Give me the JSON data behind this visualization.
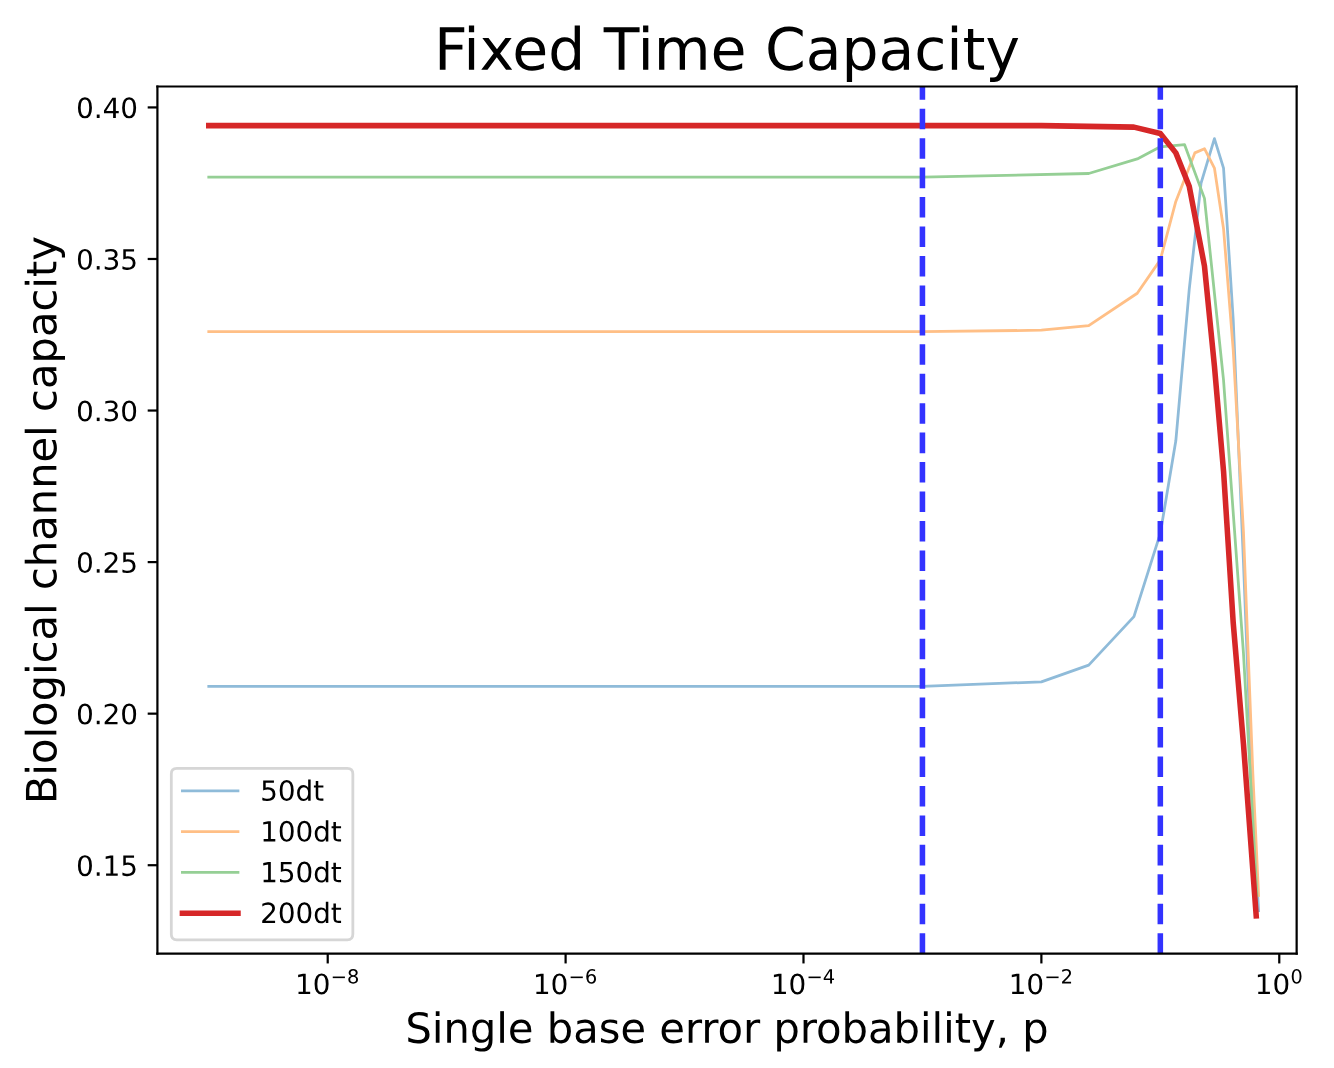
{
  "chart_data": {
    "type": "line",
    "title": "Fixed Time Capacity",
    "xlabel": "Single base error probability, p",
    "ylabel": "Biological channel capacity",
    "log": "x",
    "xlim": [
      3.7e-10,
      1.4
    ],
    "ylim": [
      0.1208,
      0.4069
    ],
    "xticks": [
      {
        "value": 1e-08,
        "label": "10$^{−8}$"
      },
      {
        "value": 1e-06,
        "label": "10$^{−6}$"
      },
      {
        "value": 0.0001,
        "label": "10$^{−4}$"
      },
      {
        "value": 0.01,
        "label": "10$^{−2}$"
      },
      {
        "value": 1,
        "label": "10$^{0}$"
      }
    ],
    "yticks": [
      {
        "value": 0.15,
        "label": "0.15"
      },
      {
        "value": 0.2,
        "label": "0.20"
      },
      {
        "value": 0.25,
        "label": "0.25"
      },
      {
        "value": 0.3,
        "label": "0.30"
      },
      {
        "value": 0.35,
        "label": "0.35"
      },
      {
        "value": 0.4,
        "label": "0.40"
      }
    ],
    "grid": false,
    "legend": "bottom left",
    "marker": "none",
    "line_style": "solid",
    "series": [
      {
        "name": "50dt",
        "color": "#8fbbd9",
        "x": [
          1e-09,
          0.001,
          0.01,
          0.025,
          0.06,
          0.1,
          0.135,
          0.175,
          0.22,
          0.285,
          0.34,
          0.41,
          0.5,
          0.6,
          0.67
        ],
        "values": [
          0.209,
          0.209,
          0.2105,
          0.216,
          0.232,
          0.2595,
          0.29,
          0.34,
          0.375,
          0.3897,
          0.38,
          0.33,
          0.25,
          0.17,
          0.135
        ]
      },
      {
        "name": "100dt",
        "color": "#ffbf86",
        "x": [
          1e-09,
          0.001,
          0.01,
          0.025,
          0.064,
          0.1,
          0.135,
          0.195,
          0.235,
          0.285,
          0.34,
          0.41,
          0.5,
          0.6,
          0.67
        ],
        "values": [
          0.326,
          0.326,
          0.3265,
          0.328,
          0.3387,
          0.3497,
          0.369,
          0.385,
          0.3864,
          0.38,
          0.36,
          0.32,
          0.26,
          0.18,
          0.14
        ]
      },
      {
        "name": "150dt",
        "color": "#95cf95",
        "x": [
          1e-09,
          0.001,
          0.025,
          0.064,
          0.1,
          0.16,
          0.235,
          0.34,
          0.5,
          0.65
        ],
        "values": [
          0.377,
          0.377,
          0.3782,
          0.383,
          0.387,
          0.3877,
          0.37,
          0.31,
          0.22,
          0.14
        ]
      },
      {
        "name": "200dt",
        "color": "#d62728",
        "x": [
          1e-09,
          0.01,
          0.06,
          0.1,
          0.135,
          0.175,
          0.235,
          0.285,
          0.34,
          0.41,
          0.5,
          0.64
        ],
        "values": [
          0.394,
          0.394,
          0.3935,
          0.3914,
          0.385,
          0.374,
          0.3477,
          0.3147,
          0.28,
          0.23,
          0.19,
          0.1333
        ]
      }
    ],
    "ref_lines": [
      {
        "axis": "x",
        "value": 0.001,
        "color": "#3333ff",
        "line_style": "dashed"
      },
      {
        "axis": "x",
        "value": 0.1,
        "color": "#3333ff",
        "line_style": "dashed"
      }
    ]
  }
}
